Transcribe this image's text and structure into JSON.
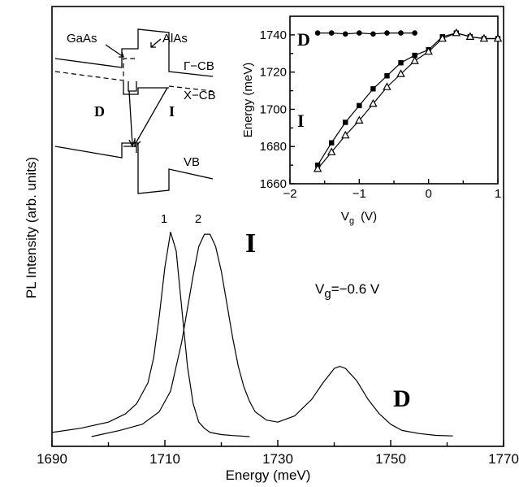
{
  "chart_data": [
    {
      "type": "line",
      "xlabel": "Energy (meV)",
      "ylabel": "PL Intensity (arb. units)",
      "xlim": [
        1690,
        1770
      ],
      "xticks": [
        "1690",
        "1710",
        "1730",
        "1750",
        "1770"
      ],
      "annotation_vg": "V",
      "annotation_vg_sub": "g",
      "annotation_vg_value": "=−0.6  V",
      "series": [
        {
          "name": "1",
          "x": [
            1690,
            1695,
            1700,
            1703,
            1705,
            1707,
            1708,
            1709,
            1710,
            1711,
            1712,
            1713,
            1714,
            1715,
            1716,
            1717,
            1718,
            1720,
            1722,
            1725
          ],
          "y": [
            0.02,
            0.04,
            0.07,
            0.11,
            0.16,
            0.26,
            0.38,
            0.58,
            0.82,
            0.99,
            0.9,
            0.62,
            0.34,
            0.16,
            0.07,
            0.04,
            0.02,
            0.01,
            0.005,
            0.0
          ]
        },
        {
          "name": "2",
          "x": [
            1697,
            1702,
            1706,
            1709,
            1711,
            1713,
            1715,
            1716,
            1717,
            1718,
            1719,
            1720,
            1721,
            1722,
            1723,
            1724,
            1725,
            1726,
            1728,
            1730,
            1733,
            1736,
            1738,
            1740,
            1741,
            1742,
            1744,
            1746,
            1748,
            1750,
            1752,
            1755,
            1758,
            1761
          ],
          "y": [
            0.0,
            0.03,
            0.06,
            0.12,
            0.22,
            0.46,
            0.78,
            0.92,
            0.98,
            0.98,
            0.92,
            0.8,
            0.64,
            0.48,
            0.34,
            0.24,
            0.17,
            0.12,
            0.08,
            0.07,
            0.1,
            0.18,
            0.26,
            0.33,
            0.34,
            0.33,
            0.27,
            0.18,
            0.11,
            0.06,
            0.03,
            0.015,
            0.006,
            0.003
          ]
        }
      ],
      "peak_labels": [
        "1",
        "2"
      ],
      "feature_labels": {
        "indirect": "I",
        "direct": "D"
      }
    },
    {
      "type": "scatter",
      "xlabel_main": "V",
      "xlabel_sub": "g",
      "xlabel_unit": "(V)",
      "ylabel": "Energy (meV)",
      "xlim": [
        -2,
        1
      ],
      "ylim": [
        1660,
        1750
      ],
      "xticks": [
        -2,
        -1,
        0,
        1
      ],
      "yticks": [
        1660,
        1680,
        1700,
        1720,
        1740
      ],
      "xtick_labels": [
        "−2",
        "−1",
        "0",
        "1"
      ],
      "ytick_labels": [
        "1660",
        "1680",
        "1700",
        "1720",
        "1740"
      ],
      "series": [
        {
          "label": "D",
          "marker": "circle",
          "x": [
            -1.6,
            -1.4,
            -1.2,
            -1.0,
            -0.8,
            -0.6,
            -0.4,
            -0.2
          ],
          "y": [
            1741,
            1741,
            1740.5,
            1741,
            1740.5,
            1741,
            1741,
            1741
          ]
        },
        {
          "label": "I",
          "marker": "square",
          "x": [
            -1.6,
            -1.4,
            -1.2,
            -1.0,
            -0.8,
            -0.6,
            -0.4,
            -0.2,
            0.0,
            0.2,
            0.4,
            0.6,
            0.8,
            1.0
          ],
          "y": [
            1670,
            1682,
            1693,
            1702,
            1711,
            1718,
            1725,
            1729,
            1732,
            1739,
            1741,
            1739,
            1738,
            1738
          ]
        },
        {
          "label": "I",
          "marker": "triangle",
          "x": [
            -1.6,
            -1.4,
            -1.2,
            -1.0,
            -0.8,
            -0.6,
            -0.4,
            -0.2,
            0.0,
            0.2,
            0.4,
            0.6,
            0.8,
            1.0
          ],
          "y": [
            1668,
            1677,
            1686,
            1694,
            1703,
            1712,
            1719,
            1726,
            1731,
            1738,
            1741,
            1739,
            1738,
            1738
          ]
        }
      ],
      "feature_labels": {
        "direct": "D",
        "indirect": "I"
      }
    }
  ],
  "band_diagram": {
    "gaas_label": "GaAs",
    "alas_label": "AlAs",
    "gamma_cb_label": "Γ−CB",
    "x_cb_label": "X−CB",
    "vb_label": "VB",
    "direct_label": "D",
    "indirect_label": "I"
  }
}
